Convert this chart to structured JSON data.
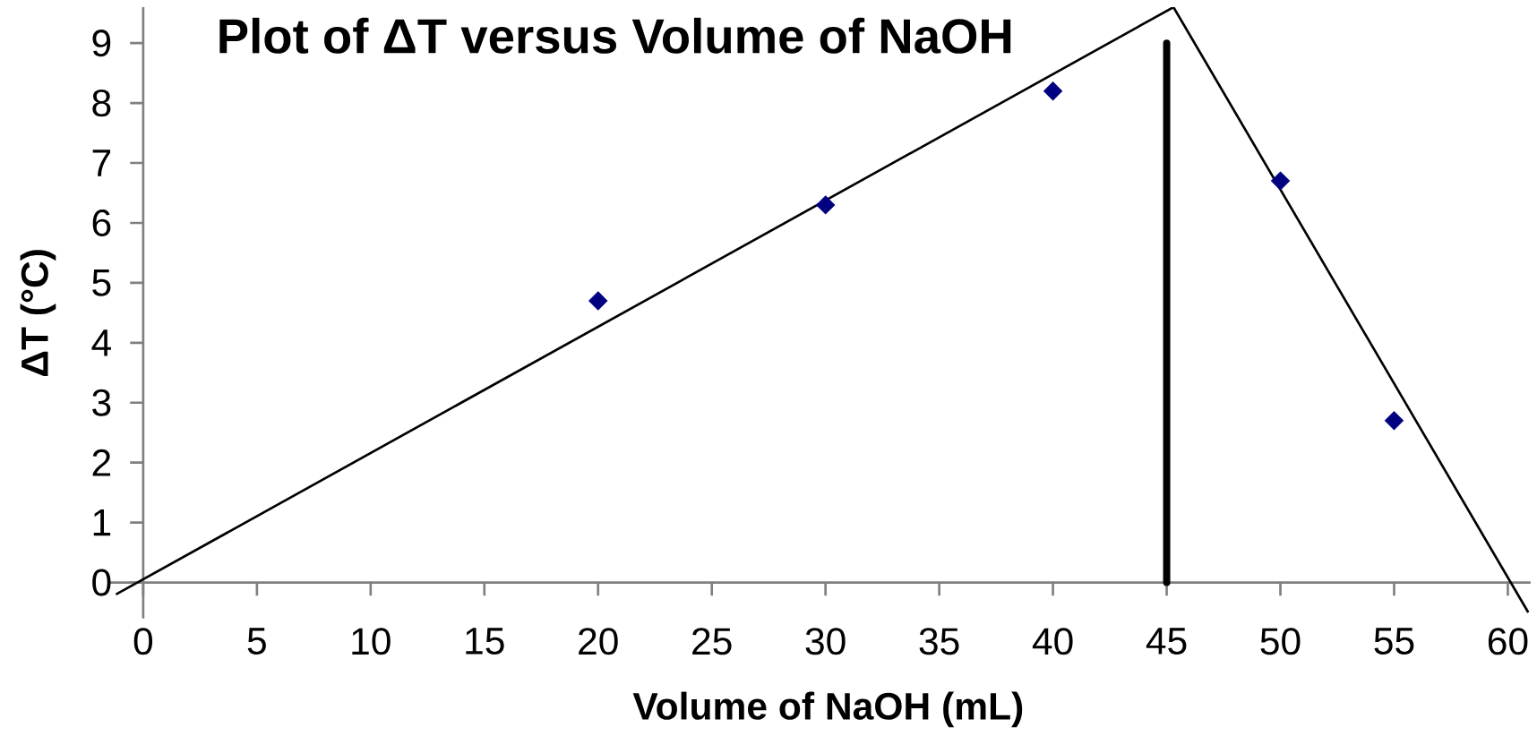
{
  "chart_data": {
    "type": "scatter",
    "title": "Plot of ΔT versus Volume of NaOH",
    "xlabel": "Volume of NaOH (mL)",
    "ylabel": "ΔT (°C)",
    "xlim": [
      -1.5,
      61
    ],
    "ylim": [
      -0.6,
      9.6
    ],
    "xticks": [
      0,
      5,
      10,
      15,
      20,
      25,
      30,
      35,
      40,
      45,
      50,
      55,
      60
    ],
    "yticks": [
      0,
      1,
      2,
      3,
      4,
      5,
      6,
      7,
      8,
      9
    ],
    "marker": "diamond",
    "series": [
      {
        "color": "#000080",
        "x": [
          20,
          30,
          40,
          50,
          55
        ],
        "values": [
          4.7,
          6.3,
          8.2,
          6.7,
          2.7
        ]
      },
      {
        "type": "line",
        "color": "#000000",
        "marker": "none",
        "x": [
          -1.2,
          45.3
        ],
        "values": [
          -0.2,
          9.6
        ]
      },
      {
        "type": "line",
        "color": "#000000",
        "marker": "none",
        "x": [
          45.3,
          60.9
        ],
        "values": [
          9.6,
          -0.5
        ]
      }
    ],
    "ref_lines": [
      {
        "axis": "x",
        "value": 45,
        "color": "#000000"
      }
    ]
  }
}
